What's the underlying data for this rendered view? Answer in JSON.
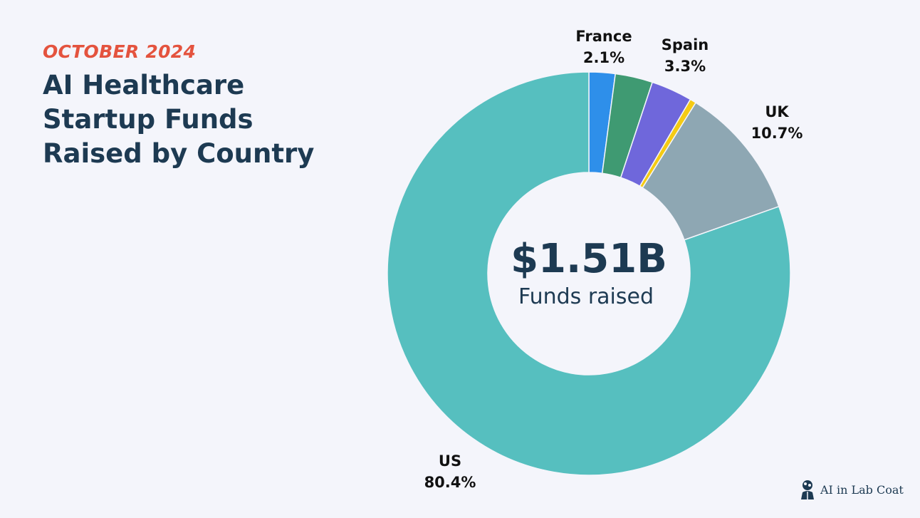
{
  "header": {
    "subtitle": "OCTOBER 2024",
    "title_lines": [
      "AI Healthcare",
      "Startup Funds",
      "Raised by Country"
    ]
  },
  "center": {
    "value": "$1.51B",
    "label": "Funds raised"
  },
  "brand": {
    "name": "AI in Lab Coat",
    "icon": "scientist-brain-icon"
  },
  "chart_data": {
    "type": "pie",
    "variant": "donut",
    "title": "AI Healthcare Startup Funds Raised by Country",
    "total_label": "$1.51B",
    "start_angle_deg": 0,
    "direction": "clockwise",
    "slices": [
      {
        "label": "France",
        "value": 2.1,
        "value_label": "2.1%",
        "color": "#2e8fea"
      },
      {
        "label": "",
        "value": 3.0,
        "value_label": "",
        "color": "#3f9a72"
      },
      {
        "label": "Spain",
        "value": 3.3,
        "value_label": "3.3%",
        "color": "#6f67db"
      },
      {
        "label": "",
        "value": 0.5,
        "value_label": "",
        "color": "#f5cb14"
      },
      {
        "label": "UK",
        "value": 10.7,
        "value_label": "10.7%",
        "color": "#8ea7b3"
      },
      {
        "label": "US",
        "value": 80.4,
        "value_label": "80.4%",
        "color": "#56bfbf"
      }
    ],
    "legend": "none"
  }
}
